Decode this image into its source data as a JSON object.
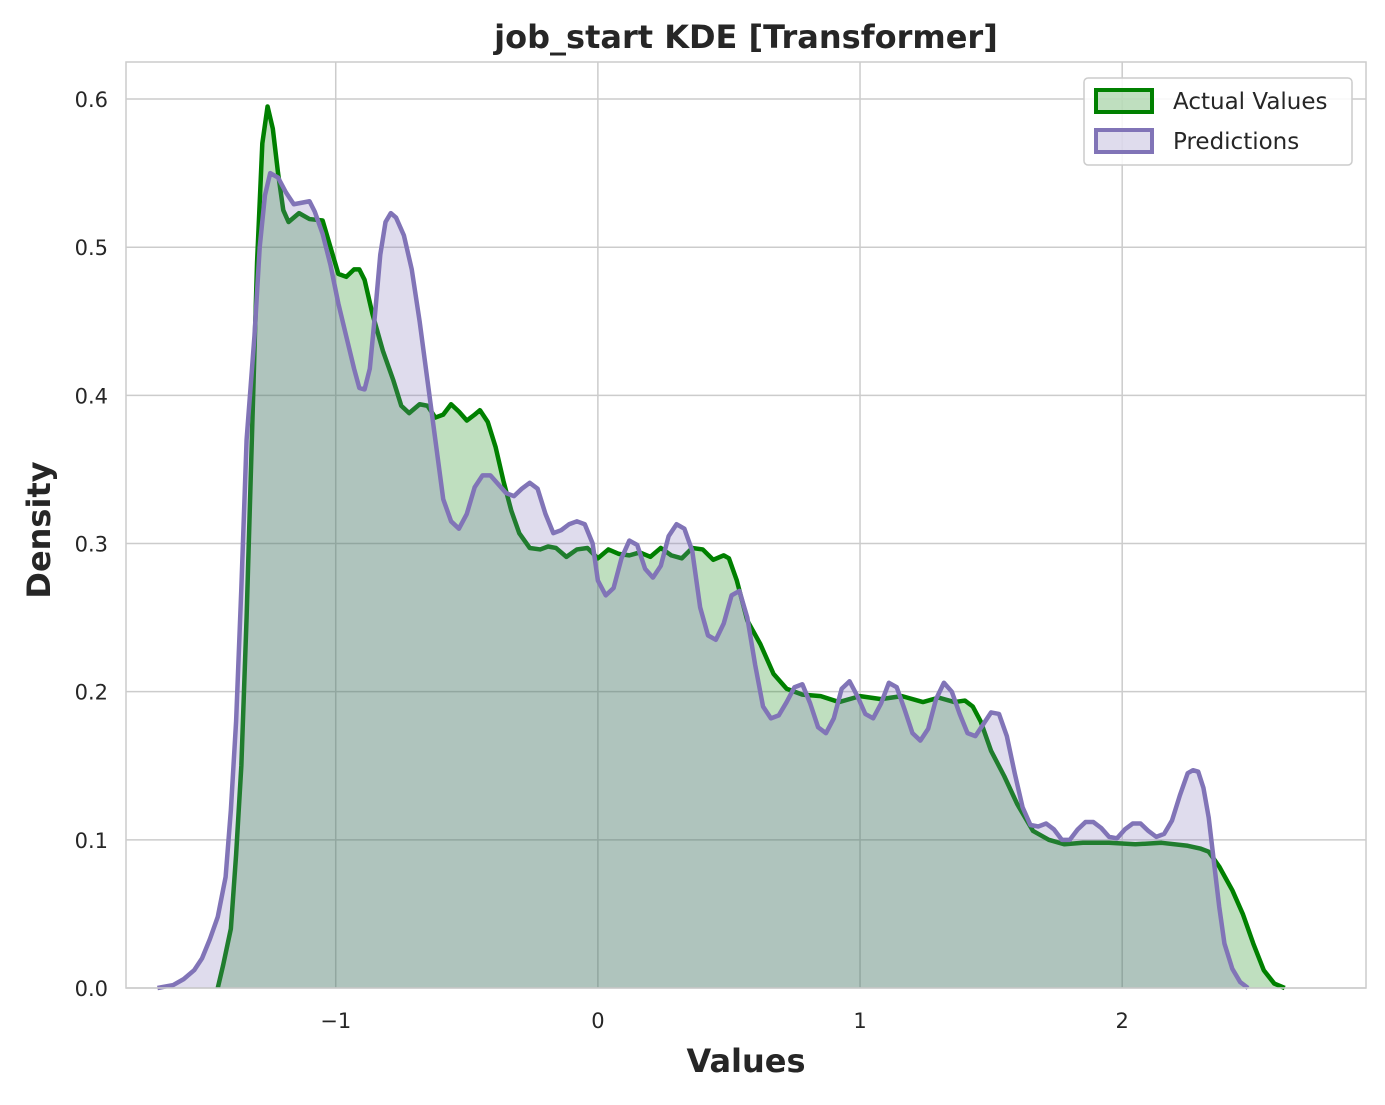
{
  "chart_data": {
    "type": "area",
    "title": "job_start KDE [Transformer]",
    "xlabel": "Values",
    "ylabel": "Density",
    "xlim": [
      -1.8,
      2.93
    ],
    "ylim": [
      0,
      0.625
    ],
    "xticks": [
      -1,
      0,
      1,
      2
    ],
    "xtick_labels": [
      "−1",
      "0",
      "1",
      "2"
    ],
    "yticks": [
      0.0,
      0.1,
      0.2,
      0.3,
      0.4,
      0.5,
      0.6
    ],
    "ytick_labels": [
      "0.0",
      "0.1",
      "0.2",
      "0.3",
      "0.4",
      "0.5",
      "0.6"
    ],
    "grid": true,
    "legend_position": "top-right",
    "series": [
      {
        "name": "Actual Values",
        "color": "#008000",
        "fill": "#008000",
        "fill_opacity": 0.25,
        "points": [
          [
            -1.45,
            0.0
          ],
          [
            -1.43,
            0.015
          ],
          [
            -1.4,
            0.04
          ],
          [
            -1.38,
            0.09
          ],
          [
            -1.36,
            0.15
          ],
          [
            -1.34,
            0.25
          ],
          [
            -1.32,
            0.37
          ],
          [
            -1.3,
            0.49
          ],
          [
            -1.28,
            0.57
          ],
          [
            -1.26,
            0.595
          ],
          [
            -1.24,
            0.58
          ],
          [
            -1.22,
            0.55
          ],
          [
            -1.2,
            0.525
          ],
          [
            -1.18,
            0.517
          ],
          [
            -1.14,
            0.523
          ],
          [
            -1.1,
            0.519
          ],
          [
            -1.05,
            0.518
          ],
          [
            -1.02,
            0.5
          ],
          [
            -0.99,
            0.482
          ],
          [
            -0.96,
            0.48
          ],
          [
            -0.93,
            0.485
          ],
          [
            -0.91,
            0.485
          ],
          [
            -0.89,
            0.478
          ],
          [
            -0.86,
            0.455
          ],
          [
            -0.82,
            0.43
          ],
          [
            -0.78,
            0.41
          ],
          [
            -0.75,
            0.393
          ],
          [
            -0.72,
            0.388
          ],
          [
            -0.68,
            0.394
          ],
          [
            -0.65,
            0.393
          ],
          [
            -0.62,
            0.385
          ],
          [
            -0.59,
            0.387
          ],
          [
            -0.56,
            0.394
          ],
          [
            -0.53,
            0.389
          ],
          [
            -0.5,
            0.383
          ],
          [
            -0.47,
            0.387
          ],
          [
            -0.45,
            0.39
          ],
          [
            -0.42,
            0.382
          ],
          [
            -0.39,
            0.365
          ],
          [
            -0.36,
            0.342
          ],
          [
            -0.33,
            0.322
          ],
          [
            -0.3,
            0.307
          ],
          [
            -0.26,
            0.297
          ],
          [
            -0.22,
            0.296
          ],
          [
            -0.19,
            0.298
          ],
          [
            -0.16,
            0.297
          ],
          [
            -0.12,
            0.291
          ],
          [
            -0.08,
            0.296
          ],
          [
            -0.04,
            0.297
          ],
          [
            0.0,
            0.29
          ],
          [
            0.04,
            0.296
          ],
          [
            0.08,
            0.293
          ],
          [
            0.12,
            0.292
          ],
          [
            0.16,
            0.294
          ],
          [
            0.2,
            0.291
          ],
          [
            0.24,
            0.297
          ],
          [
            0.28,
            0.292
          ],
          [
            0.32,
            0.29
          ],
          [
            0.36,
            0.297
          ],
          [
            0.4,
            0.296
          ],
          [
            0.44,
            0.289
          ],
          [
            0.48,
            0.292
          ],
          [
            0.5,
            0.29
          ],
          [
            0.53,
            0.275
          ],
          [
            0.57,
            0.248
          ],
          [
            0.62,
            0.232
          ],
          [
            0.67,
            0.212
          ],
          [
            0.72,
            0.202
          ],
          [
            0.78,
            0.198
          ],
          [
            0.85,
            0.197
          ],
          [
            0.92,
            0.193
          ],
          [
            1.0,
            0.197
          ],
          [
            1.08,
            0.195
          ],
          [
            1.16,
            0.197
          ],
          [
            1.24,
            0.193
          ],
          [
            1.3,
            0.196
          ],
          [
            1.36,
            0.193
          ],
          [
            1.4,
            0.194
          ],
          [
            1.43,
            0.19
          ],
          [
            1.46,
            0.18
          ],
          [
            1.5,
            0.16
          ],
          [
            1.55,
            0.143
          ],
          [
            1.6,
            0.124
          ],
          [
            1.66,
            0.106
          ],
          [
            1.72,
            0.1
          ],
          [
            1.78,
            0.097
          ],
          [
            1.85,
            0.098
          ],
          [
            1.95,
            0.098
          ],
          [
            2.05,
            0.097
          ],
          [
            2.15,
            0.098
          ],
          [
            2.25,
            0.096
          ],
          [
            2.3,
            0.094
          ],
          [
            2.33,
            0.092
          ],
          [
            2.37,
            0.082
          ],
          [
            2.42,
            0.066
          ],
          [
            2.46,
            0.05
          ],
          [
            2.5,
            0.03
          ],
          [
            2.54,
            0.012
          ],
          [
            2.58,
            0.003
          ],
          [
            2.62,
            0.0
          ]
        ]
      },
      {
        "name": "Predictions",
        "color": "#8174B7",
        "fill": "#8174B7",
        "fill_opacity": 0.25,
        "points": [
          [
            -1.68,
            0.0
          ],
          [
            -1.62,
            0.002
          ],
          [
            -1.58,
            0.006
          ],
          [
            -1.54,
            0.012
          ],
          [
            -1.51,
            0.02
          ],
          [
            -1.48,
            0.033
          ],
          [
            -1.45,
            0.048
          ],
          [
            -1.42,
            0.075
          ],
          [
            -1.4,
            0.12
          ],
          [
            -1.38,
            0.18
          ],
          [
            -1.36,
            0.27
          ],
          [
            -1.34,
            0.37
          ],
          [
            -1.31,
            0.44
          ],
          [
            -1.29,
            0.5
          ],
          [
            -1.27,
            0.535
          ],
          [
            -1.25,
            0.55
          ],
          [
            -1.22,
            0.547
          ],
          [
            -1.19,
            0.537
          ],
          [
            -1.16,
            0.529
          ],
          [
            -1.13,
            0.53
          ],
          [
            -1.1,
            0.531
          ],
          [
            -1.08,
            0.524
          ],
          [
            -1.05,
            0.509
          ],
          [
            -1.02,
            0.488
          ],
          [
            -0.99,
            0.462
          ],
          [
            -0.96,
            0.44
          ],
          [
            -0.93,
            0.418
          ],
          [
            -0.91,
            0.405
          ],
          [
            -0.89,
            0.404
          ],
          [
            -0.87,
            0.418
          ],
          [
            -0.85,
            0.455
          ],
          [
            -0.83,
            0.495
          ],
          [
            -0.81,
            0.517
          ],
          [
            -0.79,
            0.523
          ],
          [
            -0.77,
            0.52
          ],
          [
            -0.74,
            0.508
          ],
          [
            -0.71,
            0.485
          ],
          [
            -0.68,
            0.45
          ],
          [
            -0.65,
            0.41
          ],
          [
            -0.62,
            0.37
          ],
          [
            -0.59,
            0.33
          ],
          [
            -0.56,
            0.315
          ],
          [
            -0.53,
            0.31
          ],
          [
            -0.5,
            0.32
          ],
          [
            -0.47,
            0.338
          ],
          [
            -0.44,
            0.346
          ],
          [
            -0.41,
            0.346
          ],
          [
            -0.38,
            0.34
          ],
          [
            -0.35,
            0.334
          ],
          [
            -0.32,
            0.332
          ],
          [
            -0.29,
            0.337
          ],
          [
            -0.26,
            0.341
          ],
          [
            -0.23,
            0.337
          ],
          [
            -0.2,
            0.32
          ],
          [
            -0.17,
            0.307
          ],
          [
            -0.14,
            0.309
          ],
          [
            -0.11,
            0.313
          ],
          [
            -0.08,
            0.315
          ],
          [
            -0.05,
            0.313
          ],
          [
            -0.02,
            0.3
          ],
          [
            0.0,
            0.275
          ],
          [
            0.03,
            0.265
          ],
          [
            0.06,
            0.27
          ],
          [
            0.09,
            0.29
          ],
          [
            0.12,
            0.302
          ],
          [
            0.15,
            0.299
          ],
          [
            0.18,
            0.283
          ],
          [
            0.21,
            0.277
          ],
          [
            0.24,
            0.285
          ],
          [
            0.27,
            0.305
          ],
          [
            0.3,
            0.313
          ],
          [
            0.33,
            0.31
          ],
          [
            0.36,
            0.295
          ],
          [
            0.39,
            0.257
          ],
          [
            0.42,
            0.238
          ],
          [
            0.45,
            0.235
          ],
          [
            0.48,
            0.246
          ],
          [
            0.51,
            0.265
          ],
          [
            0.54,
            0.268
          ],
          [
            0.57,
            0.25
          ],
          [
            0.6,
            0.218
          ],
          [
            0.63,
            0.19
          ],
          [
            0.66,
            0.182
          ],
          [
            0.69,
            0.184
          ],
          [
            0.72,
            0.193
          ],
          [
            0.75,
            0.203
          ],
          [
            0.78,
            0.205
          ],
          [
            0.81,
            0.192
          ],
          [
            0.84,
            0.176
          ],
          [
            0.87,
            0.172
          ],
          [
            0.9,
            0.182
          ],
          [
            0.93,
            0.202
          ],
          [
            0.96,
            0.207
          ],
          [
            0.99,
            0.197
          ],
          [
            1.02,
            0.185
          ],
          [
            1.05,
            0.182
          ],
          [
            1.08,
            0.192
          ],
          [
            1.11,
            0.206
          ],
          [
            1.14,
            0.203
          ],
          [
            1.17,
            0.188
          ],
          [
            1.2,
            0.172
          ],
          [
            1.23,
            0.167
          ],
          [
            1.26,
            0.175
          ],
          [
            1.29,
            0.195
          ],
          [
            1.32,
            0.206
          ],
          [
            1.35,
            0.2
          ],
          [
            1.38,
            0.185
          ],
          [
            1.41,
            0.172
          ],
          [
            1.44,
            0.17
          ],
          [
            1.47,
            0.178
          ],
          [
            1.5,
            0.186
          ],
          [
            1.53,
            0.185
          ],
          [
            1.56,
            0.17
          ],
          [
            1.59,
            0.145
          ],
          [
            1.62,
            0.122
          ],
          [
            1.65,
            0.11
          ],
          [
            1.68,
            0.109
          ],
          [
            1.71,
            0.111
          ],
          [
            1.74,
            0.107
          ],
          [
            1.77,
            0.1
          ],
          [
            1.8,
            0.1
          ],
          [
            1.83,
            0.107
          ],
          [
            1.86,
            0.112
          ],
          [
            1.89,
            0.112
          ],
          [
            1.92,
            0.108
          ],
          [
            1.95,
            0.102
          ],
          [
            1.98,
            0.101
          ],
          [
            2.01,
            0.107
          ],
          [
            2.04,
            0.111
          ],
          [
            2.07,
            0.111
          ],
          [
            2.1,
            0.106
          ],
          [
            2.13,
            0.102
          ],
          [
            2.16,
            0.104
          ],
          [
            2.19,
            0.113
          ],
          [
            2.22,
            0.13
          ],
          [
            2.25,
            0.145
          ],
          [
            2.27,
            0.147
          ],
          [
            2.29,
            0.146
          ],
          [
            2.31,
            0.135
          ],
          [
            2.33,
            0.115
          ],
          [
            2.35,
            0.085
          ],
          [
            2.37,
            0.055
          ],
          [
            2.39,
            0.03
          ],
          [
            2.42,
            0.013
          ],
          [
            2.45,
            0.004
          ],
          [
            2.48,
            0.0
          ]
        ]
      }
    ]
  }
}
